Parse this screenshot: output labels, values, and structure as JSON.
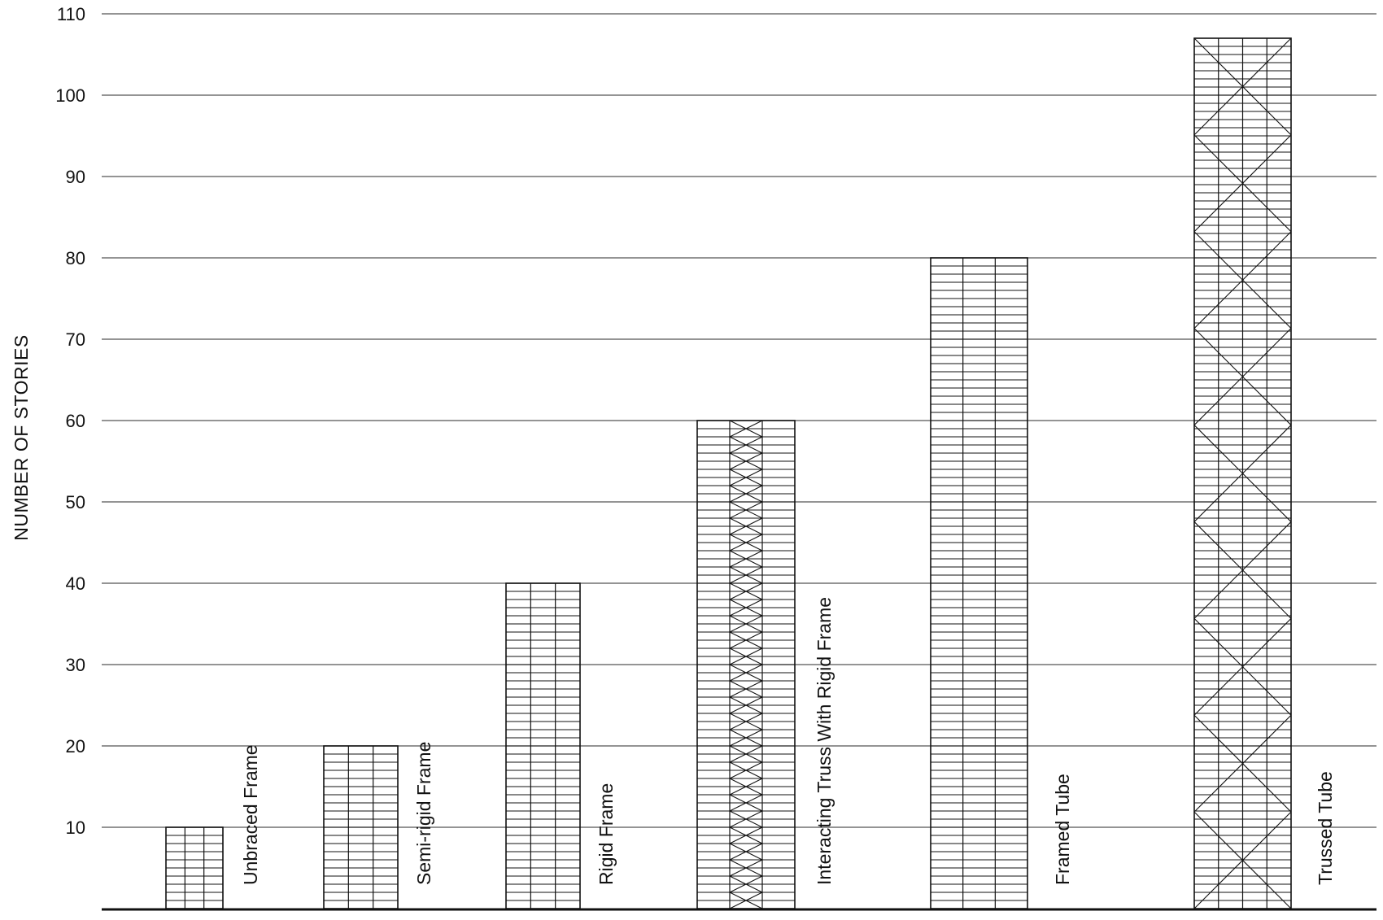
{
  "chart_data": {
    "type": "bar",
    "title": "",
    "xlabel": "",
    "ylabel": "NUMBER OF STORIES",
    "ylim": [
      0,
      110
    ],
    "yticks": [
      10,
      20,
      30,
      40,
      50,
      60,
      70,
      80,
      90,
      100,
      110
    ],
    "grid": true,
    "legend": "none",
    "categories": [
      "Unbraced Frame",
      "Semi-rigid Frame",
      "Rigid Frame",
      "Interacting Truss With Rigid Frame",
      "Framed Tube",
      "Trussed Tube"
    ],
    "values": [
      10,
      20,
      40,
      60,
      80,
      107
    ],
    "bay_columns": [
      3,
      3,
      3,
      3,
      3,
      4
    ],
    "bracing": [
      "none",
      "none",
      "none",
      "x-bracing-center-bay",
      "none",
      "x-bracing-full-width"
    ],
    "colors": {
      "line": "#111111",
      "grid": "#555555",
      "background": "#ffffff"
    }
  }
}
